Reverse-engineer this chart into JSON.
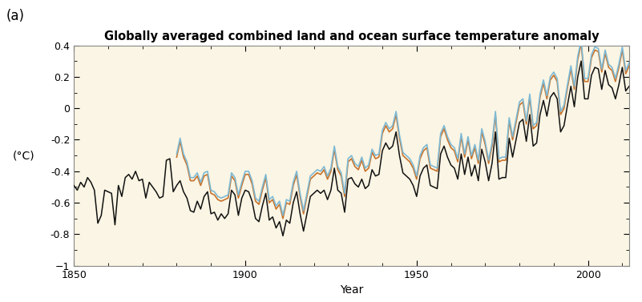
{
  "title": "Globally averaged combined land and ocean surface temperature anomaly",
  "panel_label": "(a)",
  "xlabel": "Year",
  "ylabel": "(°C)",
  "xlim": [
    1850,
    2012
  ],
  "ylim": [
    -1.0,
    0.4
  ],
  "yticks": [
    -1.0,
    -0.8,
    -0.6,
    -0.4,
    -0.2,
    0,
    0.2,
    0.4
  ],
  "xticks": [
    1850,
    1900,
    1950,
    2000
  ],
  "background_color": "#FAF5E4",
  "outer_background": "#FFFFFF",
  "line_colors": {
    "black": "#111111",
    "blue": "#7DB9D5",
    "orange": "#C8722A"
  },
  "years_all": [
    1850,
    1851,
    1852,
    1853,
    1854,
    1855,
    1856,
    1857,
    1858,
    1859,
    1860,
    1861,
    1862,
    1863,
    1864,
    1865,
    1866,
    1867,
    1868,
    1869,
    1870,
    1871,
    1872,
    1873,
    1874,
    1875,
    1876,
    1877,
    1878,
    1879,
    1880,
    1881,
    1882,
    1883,
    1884,
    1885,
    1886,
    1887,
    1888,
    1889,
    1890,
    1891,
    1892,
    1893,
    1894,
    1895,
    1896,
    1897,
    1898,
    1899,
    1900,
    1901,
    1902,
    1903,
    1904,
    1905,
    1906,
    1907,
    1908,
    1909,
    1910,
    1911,
    1912,
    1913,
    1914,
    1915,
    1916,
    1917,
    1918,
    1919,
    1920,
    1921,
    1922,
    1923,
    1924,
    1925,
    1926,
    1927,
    1928,
    1929,
    1930,
    1931,
    1932,
    1933,
    1934,
    1935,
    1936,
    1937,
    1938,
    1939,
    1940,
    1941,
    1942,
    1943,
    1944,
    1945,
    1946,
    1947,
    1948,
    1949,
    1950,
    1951,
    1952,
    1953,
    1954,
    1955,
    1956,
    1957,
    1958,
    1959,
    1960,
    1961,
    1962,
    1963,
    1964,
    1965,
    1966,
    1967,
    1968,
    1969,
    1970,
    1971,
    1972,
    1973,
    1974,
    1975,
    1976,
    1977,
    1978,
    1979,
    1980,
    1981,
    1982,
    1983,
    1984,
    1985,
    1986,
    1987,
    1988,
    1989,
    1990,
    1991,
    1992,
    1993,
    1994,
    1995,
    1996,
    1997,
    1998,
    1999,
    2000,
    2001,
    2002,
    2003,
    2004,
    2005,
    2006,
    2007,
    2008,
    2009,
    2010,
    2011,
    2012
  ],
  "hadcrut": [
    -0.49,
    -0.52,
    -0.47,
    -0.5,
    -0.44,
    -0.47,
    -0.52,
    -0.73,
    -0.68,
    -0.52,
    -0.53,
    -0.54,
    -0.74,
    -0.49,
    -0.56,
    -0.44,
    -0.42,
    -0.45,
    -0.4,
    -0.46,
    -0.45,
    -0.57,
    -0.47,
    -0.5,
    -0.53,
    -0.57,
    -0.56,
    -0.33,
    -0.32,
    -0.53,
    -0.49,
    -0.46,
    -0.53,
    -0.57,
    -0.65,
    -0.66,
    -0.59,
    -0.64,
    -0.56,
    -0.53,
    -0.67,
    -0.66,
    -0.71,
    -0.67,
    -0.7,
    -0.67,
    -0.52,
    -0.55,
    -0.68,
    -0.57,
    -0.52,
    -0.53,
    -0.59,
    -0.7,
    -0.72,
    -0.62,
    -0.54,
    -0.71,
    -0.69,
    -0.76,
    -0.72,
    -0.81,
    -0.71,
    -0.73,
    -0.6,
    -0.53,
    -0.67,
    -0.78,
    -0.67,
    -0.56,
    -0.54,
    -0.52,
    -0.54,
    -0.52,
    -0.58,
    -0.52,
    -0.38,
    -0.52,
    -0.54,
    -0.66,
    -0.45,
    -0.44,
    -0.48,
    -0.5,
    -0.45,
    -0.51,
    -0.49,
    -0.39,
    -0.43,
    -0.42,
    -0.27,
    -0.22,
    -0.26,
    -0.24,
    -0.15,
    -0.3,
    -0.41,
    -0.43,
    -0.45,
    -0.49,
    -0.56,
    -0.43,
    -0.38,
    -0.36,
    -0.49,
    -0.5,
    -0.51,
    -0.29,
    -0.24,
    -0.31,
    -0.36,
    -0.38,
    -0.45,
    -0.29,
    -0.42,
    -0.31,
    -0.43,
    -0.36,
    -0.46,
    -0.26,
    -0.34,
    -0.46,
    -0.35,
    -0.15,
    -0.45,
    -0.44,
    -0.44,
    -0.19,
    -0.31,
    -0.2,
    -0.09,
    -0.07,
    -0.21,
    -0.04,
    -0.24,
    -0.22,
    -0.04,
    0.05,
    -0.05,
    0.07,
    0.1,
    0.06,
    -0.15,
    -0.11,
    0.02,
    0.14,
    0.01,
    0.2,
    0.3,
    0.06,
    0.06,
    0.21,
    0.26,
    0.25,
    0.12,
    0.24,
    0.15,
    0.13,
    0.06,
    0.15,
    0.26,
    0.11,
    0.14
  ],
  "years_colored": [
    1880,
    1881,
    1882,
    1883,
    1884,
    1885,
    1886,
    1887,
    1888,
    1889,
    1890,
    1891,
    1892,
    1893,
    1894,
    1895,
    1896,
    1897,
    1898,
    1899,
    1900,
    1901,
    1902,
    1903,
    1904,
    1905,
    1906,
    1907,
    1908,
    1909,
    1910,
    1911,
    1912,
    1913,
    1914,
    1915,
    1916,
    1917,
    1918,
    1919,
    1920,
    1921,
    1922,
    1923,
    1924,
    1925,
    1926,
    1927,
    1928,
    1929,
    1930,
    1931,
    1932,
    1933,
    1934,
    1935,
    1936,
    1937,
    1938,
    1939,
    1940,
    1941,
    1942,
    1943,
    1944,
    1945,
    1946,
    1947,
    1948,
    1949,
    1950,
    1951,
    1952,
    1953,
    1954,
    1955,
    1956,
    1957,
    1958,
    1959,
    1960,
    1961,
    1962,
    1963,
    1964,
    1965,
    1966,
    1967,
    1968,
    1969,
    1970,
    1971,
    1972,
    1973,
    1974,
    1975,
    1976,
    1977,
    1978,
    1979,
    1980,
    1981,
    1982,
    1983,
    1984,
    1985,
    1986,
    1987,
    1988,
    1989,
    1990,
    1991,
    1992,
    1993,
    1994,
    1995,
    1996,
    1997,
    1998,
    1999,
    2000,
    2001,
    2002,
    2003,
    2004,
    2005,
    2006,
    2007,
    2008,
    2009,
    2010,
    2011,
    2012
  ],
  "gistemp": [
    -0.29,
    -0.19,
    -0.29,
    -0.34,
    -0.44,
    -0.44,
    -0.41,
    -0.47,
    -0.41,
    -0.4,
    -0.52,
    -0.53,
    -0.56,
    -0.57,
    -0.56,
    -0.55,
    -0.41,
    -0.44,
    -0.55,
    -0.47,
    -0.4,
    -0.4,
    -0.46,
    -0.57,
    -0.59,
    -0.5,
    -0.42,
    -0.58,
    -0.56,
    -0.62,
    -0.59,
    -0.68,
    -0.58,
    -0.59,
    -0.47,
    -0.4,
    -0.54,
    -0.65,
    -0.54,
    -0.43,
    -0.41,
    -0.39,
    -0.4,
    -0.37,
    -0.43,
    -0.38,
    -0.24,
    -0.37,
    -0.41,
    -0.54,
    -0.32,
    -0.3,
    -0.35,
    -0.37,
    -0.31,
    -0.38,
    -0.36,
    -0.26,
    -0.3,
    -0.29,
    -0.14,
    -0.09,
    -0.13,
    -0.11,
    -0.02,
    -0.17,
    -0.28,
    -0.3,
    -0.32,
    -0.36,
    -0.43,
    -0.3,
    -0.25,
    -0.23,
    -0.36,
    -0.37,
    -0.38,
    -0.16,
    -0.11,
    -0.18,
    -0.23,
    -0.25,
    -0.32,
    -0.16,
    -0.29,
    -0.18,
    -0.3,
    -0.23,
    -0.33,
    -0.13,
    -0.21,
    -0.33,
    -0.22,
    -0.02,
    -0.32,
    -0.31,
    -0.31,
    -0.06,
    -0.18,
    -0.07,
    0.04,
    0.06,
    -0.08,
    0.09,
    -0.11,
    -0.09,
    0.09,
    0.18,
    0.08,
    0.2,
    0.23,
    0.19,
    -0.02,
    0.02,
    0.15,
    0.27,
    0.14,
    0.33,
    0.43,
    0.19,
    0.19,
    0.34,
    0.39,
    0.38,
    0.25,
    0.37,
    0.28,
    0.26,
    0.19,
    0.28,
    0.39,
    0.24,
    0.29
  ],
  "ncdc": [
    -0.31,
    -0.21,
    -0.31,
    -0.36,
    -0.46,
    -0.46,
    -0.43,
    -0.49,
    -0.43,
    -0.42,
    -0.54,
    -0.55,
    -0.58,
    -0.59,
    -0.58,
    -0.57,
    -0.43,
    -0.46,
    -0.57,
    -0.49,
    -0.42,
    -0.42,
    -0.48,
    -0.59,
    -0.61,
    -0.52,
    -0.44,
    -0.6,
    -0.58,
    -0.64,
    -0.61,
    -0.7,
    -0.6,
    -0.61,
    -0.49,
    -0.42,
    -0.56,
    -0.67,
    -0.56,
    -0.45,
    -0.43,
    -0.41,
    -0.42,
    -0.39,
    -0.45,
    -0.4,
    -0.26,
    -0.39,
    -0.43,
    -0.56,
    -0.34,
    -0.32,
    -0.37,
    -0.39,
    -0.33,
    -0.4,
    -0.38,
    -0.28,
    -0.32,
    -0.31,
    -0.16,
    -0.11,
    -0.15,
    -0.13,
    -0.04,
    -0.19,
    -0.3,
    -0.32,
    -0.34,
    -0.38,
    -0.45,
    -0.32,
    -0.27,
    -0.25,
    -0.38,
    -0.39,
    -0.4,
    -0.18,
    -0.13,
    -0.2,
    -0.25,
    -0.27,
    -0.34,
    -0.18,
    -0.31,
    -0.2,
    -0.32,
    -0.25,
    -0.35,
    -0.15,
    -0.23,
    -0.35,
    -0.24,
    -0.04,
    -0.34,
    -0.33,
    -0.33,
    -0.08,
    -0.2,
    -0.09,
    0.02,
    0.04,
    -0.1,
    0.07,
    -0.13,
    -0.11,
    0.07,
    0.16,
    0.06,
    0.18,
    0.21,
    0.17,
    -0.04,
    0.0,
    0.13,
    0.25,
    0.12,
    0.31,
    0.41,
    0.17,
    0.17,
    0.32,
    0.37,
    0.36,
    0.23,
    0.35,
    0.26,
    0.24,
    0.17,
    0.26,
    0.37,
    0.22,
    0.27
  ]
}
